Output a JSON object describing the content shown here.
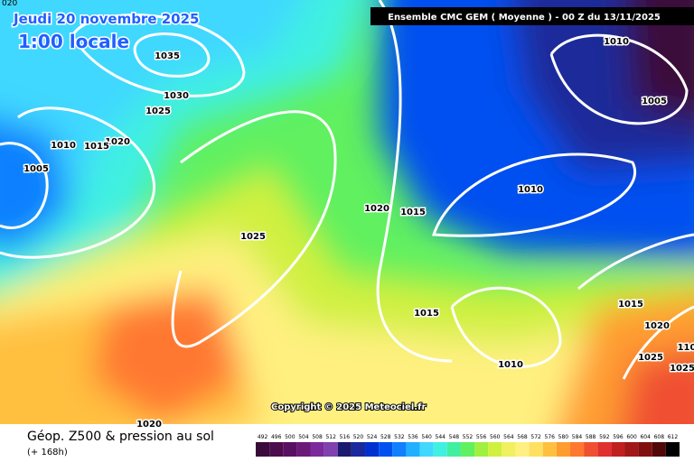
{
  "header": {
    "date": "Jeudi 20 novembre 2025",
    "time": "1:00 locale",
    "model": "Ensemble CMC GEM  ( Moyenne )  -  00 Z du 13/11/2025",
    "corner_label": "020"
  },
  "map": {
    "isobar_labels": [
      "1035",
      "1030",
      "1025",
      "1020",
      "1015",
      "1010",
      "1005",
      "1020",
      "1015",
      "1025",
      "1015",
      "1010",
      "1010",
      "1010",
      "1005",
      "1015",
      "1020",
      "1025",
      "1025",
      "110",
      "1020"
    ],
    "copyright": "Copyright © 2025 Meteociel.fr"
  },
  "footer": {
    "caption": "Géop. Z500 & pression au sol",
    "lead": "(+ 168h)"
  },
  "legend": {
    "values": [
      492,
      496,
      500,
      504,
      508,
      512,
      516,
      520,
      524,
      528,
      532,
      536,
      540,
      544,
      548,
      552,
      556,
      560,
      564,
      568,
      572,
      576,
      580,
      584,
      588,
      592,
      596,
      600,
      604,
      608,
      612
    ],
    "colors": [
      "#3a0a3a",
      "#4b0d4b",
      "#5a1060",
      "#6b1a7a",
      "#7a2a9a",
      "#8040b0",
      "#1a1a6e",
      "#1a2a9a",
      "#0030d0",
      "#0050f0",
      "#1080ff",
      "#20b0ff",
      "#40d8ff",
      "#40f0e0",
      "#40f0a0",
      "#60f060",
      "#a0f040",
      "#d0f040",
      "#f0f060",
      "#fff080",
      "#ffe060",
      "#ffc040",
      "#ff9c30",
      "#ff7830",
      "#f05030",
      "#e03030",
      "#c02020",
      "#a01818",
      "#801010",
      "#500808",
      "#000000"
    ]
  }
}
